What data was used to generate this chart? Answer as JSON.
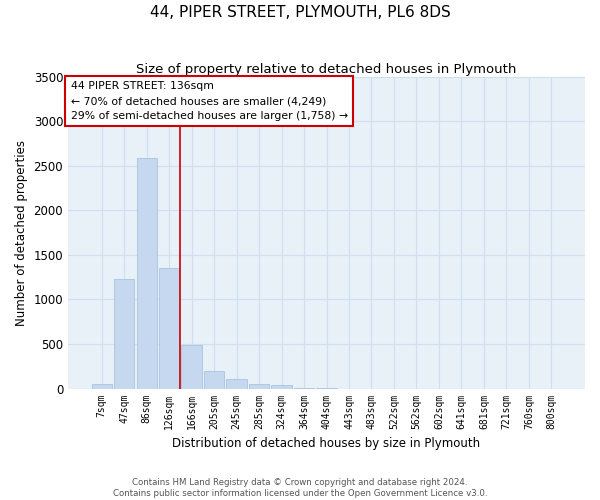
{
  "title": "44, PIPER STREET, PLYMOUTH, PL6 8DS",
  "subtitle": "Size of property relative to detached houses in Plymouth",
  "xlabel": "Distribution of detached houses by size in Plymouth",
  "ylabel": "Number of detached properties",
  "bar_labels": [
    "7sqm",
    "47sqm",
    "86sqm",
    "126sqm",
    "166sqm",
    "205sqm",
    "245sqm",
    "285sqm",
    "324sqm",
    "364sqm",
    "404sqm",
    "443sqm",
    "483sqm",
    "522sqm",
    "562sqm",
    "602sqm",
    "641sqm",
    "681sqm",
    "721sqm",
    "760sqm",
    "800sqm"
  ],
  "bar_values": [
    50,
    1230,
    2590,
    1350,
    490,
    200,
    110,
    55,
    35,
    10,
    10,
    0,
    0,
    0,
    0,
    0,
    0,
    0,
    0,
    0,
    0
  ],
  "bar_color": "#c5d8f0",
  "bar_edgecolor": "#a8c4e0",
  "grid_color": "#d0dff0",
  "background_color": "#e8f0f8",
  "vline_color": "#cc0000",
  "vline_position": 3.5,
  "annotation_title": "44 PIPER STREET: 136sqm",
  "annotation_line1": "← 70% of detached houses are smaller (4,249)",
  "annotation_line2": "29% of semi-detached houses are larger (1,758) →",
  "annotation_box_facecolor": "#ffffff",
  "annotation_edge_color": "#cc0000",
  "ylim": [
    0,
    3500
  ],
  "yticks": [
    0,
    500,
    1000,
    1500,
    2000,
    2500,
    3000,
    3500
  ],
  "footer_line1": "Contains HM Land Registry data © Crown copyright and database right 2024.",
  "footer_line2": "Contains public sector information licensed under the Open Government Licence v3.0."
}
